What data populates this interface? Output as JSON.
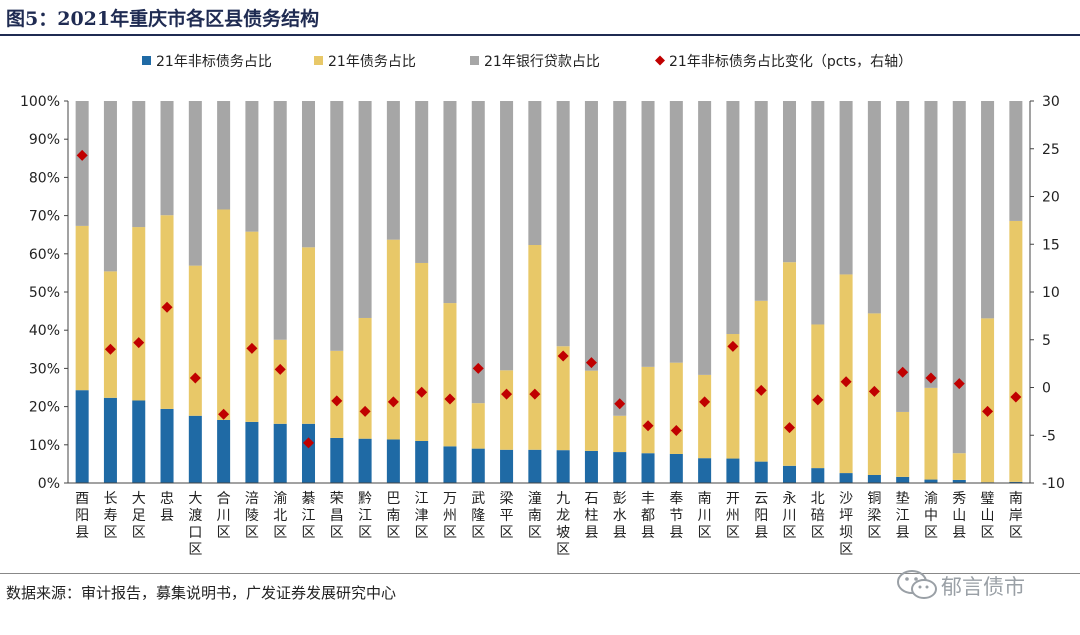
{
  "figure_title": "图5：2021年重庆市各区县债务结构",
  "source": "数据来源：审计报告，募集说明书，广发证券发展研究中心",
  "watermark": "郁言债市",
  "colors": {
    "nonstandard": "#1f6aa5",
    "bond": "#e8c868",
    "loan": "#a6a6a6",
    "change": "#c00000",
    "title": "#1f2b52"
  },
  "chart_data": {
    "type": "bar",
    "stacked": true,
    "title": "2021年重庆市各区县债务结构",
    "categories": [
      "酉阳县",
      "长寿区",
      "大足区",
      "忠县",
      "大渡口区",
      "合川区",
      "涪陵区",
      "渝北区",
      "綦江区",
      "荣昌区",
      "黔江区",
      "巴南区",
      "江津区",
      "万州区",
      "武隆区",
      "梁平区",
      "潼南区",
      "九龙坡区",
      "石柱县",
      "彭水县",
      "丰都县",
      "奉节县",
      "南川区",
      "开州区",
      "云阳县",
      "永川区",
      "北碚区",
      "沙坪坝区",
      "铜梁区",
      "垫江县",
      "渝中区",
      "秀山县",
      "璧山区",
      "南岸区"
    ],
    "series": [
      {
        "name": "21年非标债务占比",
        "axis": "left",
        "values": [
          24.3,
          22.3,
          21.6,
          19.4,
          17.6,
          16.5,
          16.0,
          15.5,
          15.5,
          11.8,
          11.6,
          11.4,
          11.0,
          9.6,
          9.0,
          8.7,
          8.7,
          8.6,
          8.4,
          8.1,
          7.8,
          7.6,
          6.5,
          6.4,
          5.6,
          4.5,
          3.9,
          2.6,
          2.1,
          1.6,
          0.9,
          0.8,
          0.2,
          0.3
        ]
      },
      {
        "name": "21年债务占比",
        "axis": "left",
        "values": [
          43.0,
          33.1,
          45.4,
          50.7,
          39.3,
          55.1,
          49.8,
          22.0,
          46.2,
          22.8,
          31.6,
          52.3,
          46.6,
          37.5,
          11.9,
          20.8,
          53.6,
          27.2,
          21.0,
          9.5,
          22.6,
          23.9,
          21.8,
          32.6,
          42.1,
          53.3,
          37.6,
          52.0,
          42.3,
          17.0,
          24.0,
          7.0,
          42.9,
          68.3
        ]
      },
      {
        "name": "21年银行贷款占比",
        "axis": "left",
        "values": [
          32.7,
          44.6,
          33.0,
          29.9,
          43.1,
          28.4,
          34.2,
          62.5,
          38.3,
          65.4,
          56.8,
          36.3,
          42.4,
          52.9,
          79.1,
          70.5,
          37.7,
          64.2,
          70.6,
          82.4,
          69.6,
          68.5,
          71.7,
          61.0,
          52.3,
          42.2,
          58.5,
          45.4,
          55.6,
          81.4,
          75.1,
          92.2,
          56.9,
          31.4
        ]
      },
      {
        "name": "21年非标债务占比变化（pcts，右轴）",
        "axis": "right",
        "values": [
          24.3,
          4.0,
          4.7,
          8.4,
          1.0,
          -2.8,
          4.1,
          1.9,
          -5.8,
          -1.4,
          -2.5,
          -1.5,
          -0.5,
          -1.2,
          2.0,
          -0.7,
          -0.7,
          3.3,
          2.6,
          -1.7,
          -4.0,
          -4.5,
          -1.5,
          4.3,
          -0.3,
          -4.2,
          -1.3,
          0.6,
          -0.4,
          1.6,
          1.0,
          0.4,
          -2.5,
          -1.0
        ]
      }
    ],
    "y_left": {
      "min": 0,
      "max": 100,
      "step": 10,
      "ticks": [
        "0%",
        "10%",
        "20%",
        "30%",
        "40%",
        "50%",
        "60%",
        "70%",
        "80%",
        "90%",
        "100%"
      ]
    },
    "y_right": {
      "min": -10,
      "max": 30,
      "step": 5,
      "ticks": [
        "-10",
        "-5",
        "0",
        "5",
        "10",
        "15",
        "20",
        "25",
        "30"
      ]
    },
    "grid": false,
    "legend_position": "top"
  }
}
